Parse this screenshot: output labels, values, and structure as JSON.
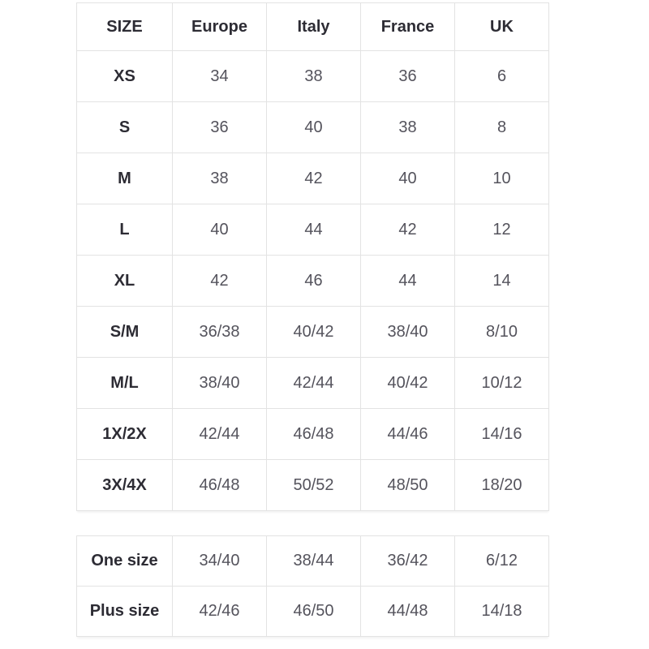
{
  "colors": {
    "border": "#e3e3e3",
    "header_text": "#2d2c34",
    "cell_text": "#54535c",
    "page_bg": "#ffffff"
  },
  "size_table": {
    "headers": [
      "SIZE",
      "Europe",
      "Italy",
      "France",
      "UK"
    ],
    "rows": [
      {
        "label": "XS",
        "values": [
          "34",
          "38",
          "36",
          "6"
        ]
      },
      {
        "label": "S",
        "values": [
          "36",
          "40",
          "38",
          "8"
        ]
      },
      {
        "label": "M",
        "values": [
          "38",
          "42",
          "40",
          "10"
        ]
      },
      {
        "label": "L",
        "values": [
          "40",
          "44",
          "42",
          "12"
        ]
      },
      {
        "label": "XL",
        "values": [
          "42",
          "46",
          "44",
          "14"
        ]
      },
      {
        "label": "S/M",
        "values": [
          "36/38",
          "40/42",
          "38/40",
          "8/10"
        ]
      },
      {
        "label": "M/L",
        "values": [
          "38/40",
          "42/44",
          "40/42",
          "10/12"
        ]
      },
      {
        "label": "1X/2X",
        "values": [
          "42/44",
          "46/48",
          "44/46",
          "14/16"
        ]
      },
      {
        "label": "3X/4X",
        "values": [
          "46/48",
          "50/52",
          "48/50",
          "18/20"
        ]
      }
    ]
  },
  "extra_table": {
    "rows": [
      {
        "label": "One size",
        "values": [
          "34/40",
          "38/44",
          "36/42",
          "6/12"
        ]
      },
      {
        "label": "Plus size",
        "values": [
          "42/46",
          "46/50",
          "44/48",
          "14/18"
        ]
      }
    ]
  }
}
